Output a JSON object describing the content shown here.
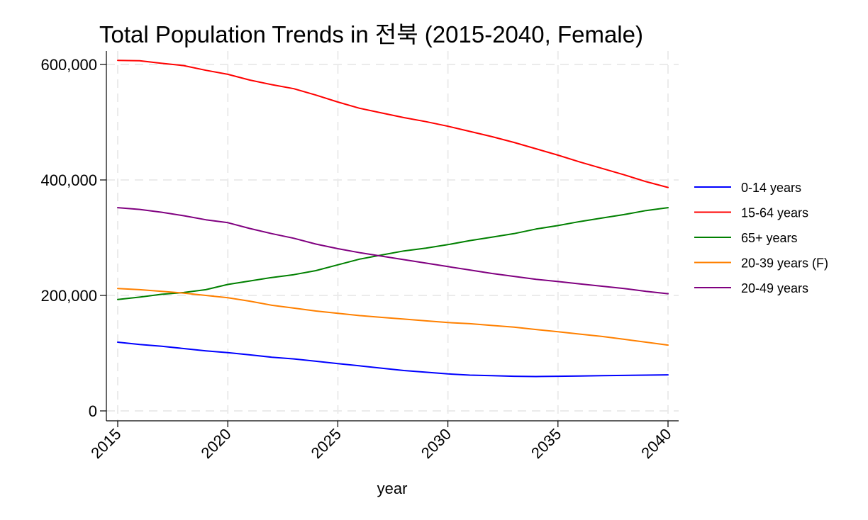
{
  "chart_data": {
    "type": "line",
    "title": "Total Population Trends in 전북 (2015-2040, Female)",
    "xlabel": "year",
    "ylabel": "",
    "xlim": [
      2015,
      2040
    ],
    "ylim": [
      0,
      600000
    ],
    "x_ticks": [
      "2015",
      "2020",
      "2025",
      "2030",
      "2035",
      "2040"
    ],
    "y_ticks": [
      "0",
      "200,000",
      "400,000",
      "600,000"
    ],
    "grid": true,
    "legend_position": "right",
    "x": [
      2015,
      2016,
      2017,
      2018,
      2019,
      2020,
      2021,
      2022,
      2023,
      2024,
      2025,
      2026,
      2027,
      2028,
      2029,
      2030,
      2031,
      2032,
      2033,
      2034,
      2035,
      2036,
      2037,
      2038,
      2039,
      2040
    ],
    "series": [
      {
        "name": "0-14 years",
        "color": "#0000ff",
        "values": [
          119000,
          115000,
          112000,
          108000,
          104000,
          101000,
          97000,
          93000,
          90000,
          86000,
          82000,
          78000,
          74000,
          70000,
          67000,
          64000,
          62000,
          61000,
          60000,
          59500,
          60000,
          60500,
          61000,
          61500,
          62000,
          62500
        ]
      },
      {
        "name": "15-64 years",
        "color": "#ff0000",
        "values": [
          607000,
          606500,
          602000,
          598000,
          590000,
          583000,
          573000,
          565000,
          558000,
          547000,
          535000,
          524000,
          516000,
          508000,
          501000,
          493000,
          484000,
          475000,
          465000,
          454000,
          443000,
          431000,
          420000,
          409000,
          397000,
          387000
        ]
      },
      {
        "name": "65+ years",
        "color": "#008000",
        "values": [
          193000,
          197000,
          202000,
          205000,
          210000,
          219000,
          225000,
          231000,
          236000,
          243000,
          253000,
          263000,
          270000,
          277000,
          282000,
          288000,
          295000,
          301000,
          307000,
          315000,
          321000,
          328000,
          334000,
          340000,
          347000,
          352000
        ]
      },
      {
        "name": "20-39 years (F)",
        "color": "#ff8000",
        "values": [
          212000,
          210000,
          207000,
          204000,
          200000,
          196000,
          190000,
          183000,
          178000,
          173000,
          169000,
          165000,
          162000,
          159000,
          156000,
          153000,
          151000,
          148000,
          145000,
          141000,
          137000,
          133000,
          129000,
          124000,
          119000,
          114000
        ]
      },
      {
        "name": "20-49 years",
        "color": "#800080",
        "values": [
          352000,
          349000,
          344000,
          338000,
          331000,
          326000,
          316000,
          307000,
          299000,
          289000,
          281000,
          274000,
          268000,
          262000,
          256000,
          250000,
          244000,
          238000,
          233000,
          228000,
          224000,
          220000,
          216000,
          212000,
          207000,
          203000
        ]
      }
    ]
  }
}
